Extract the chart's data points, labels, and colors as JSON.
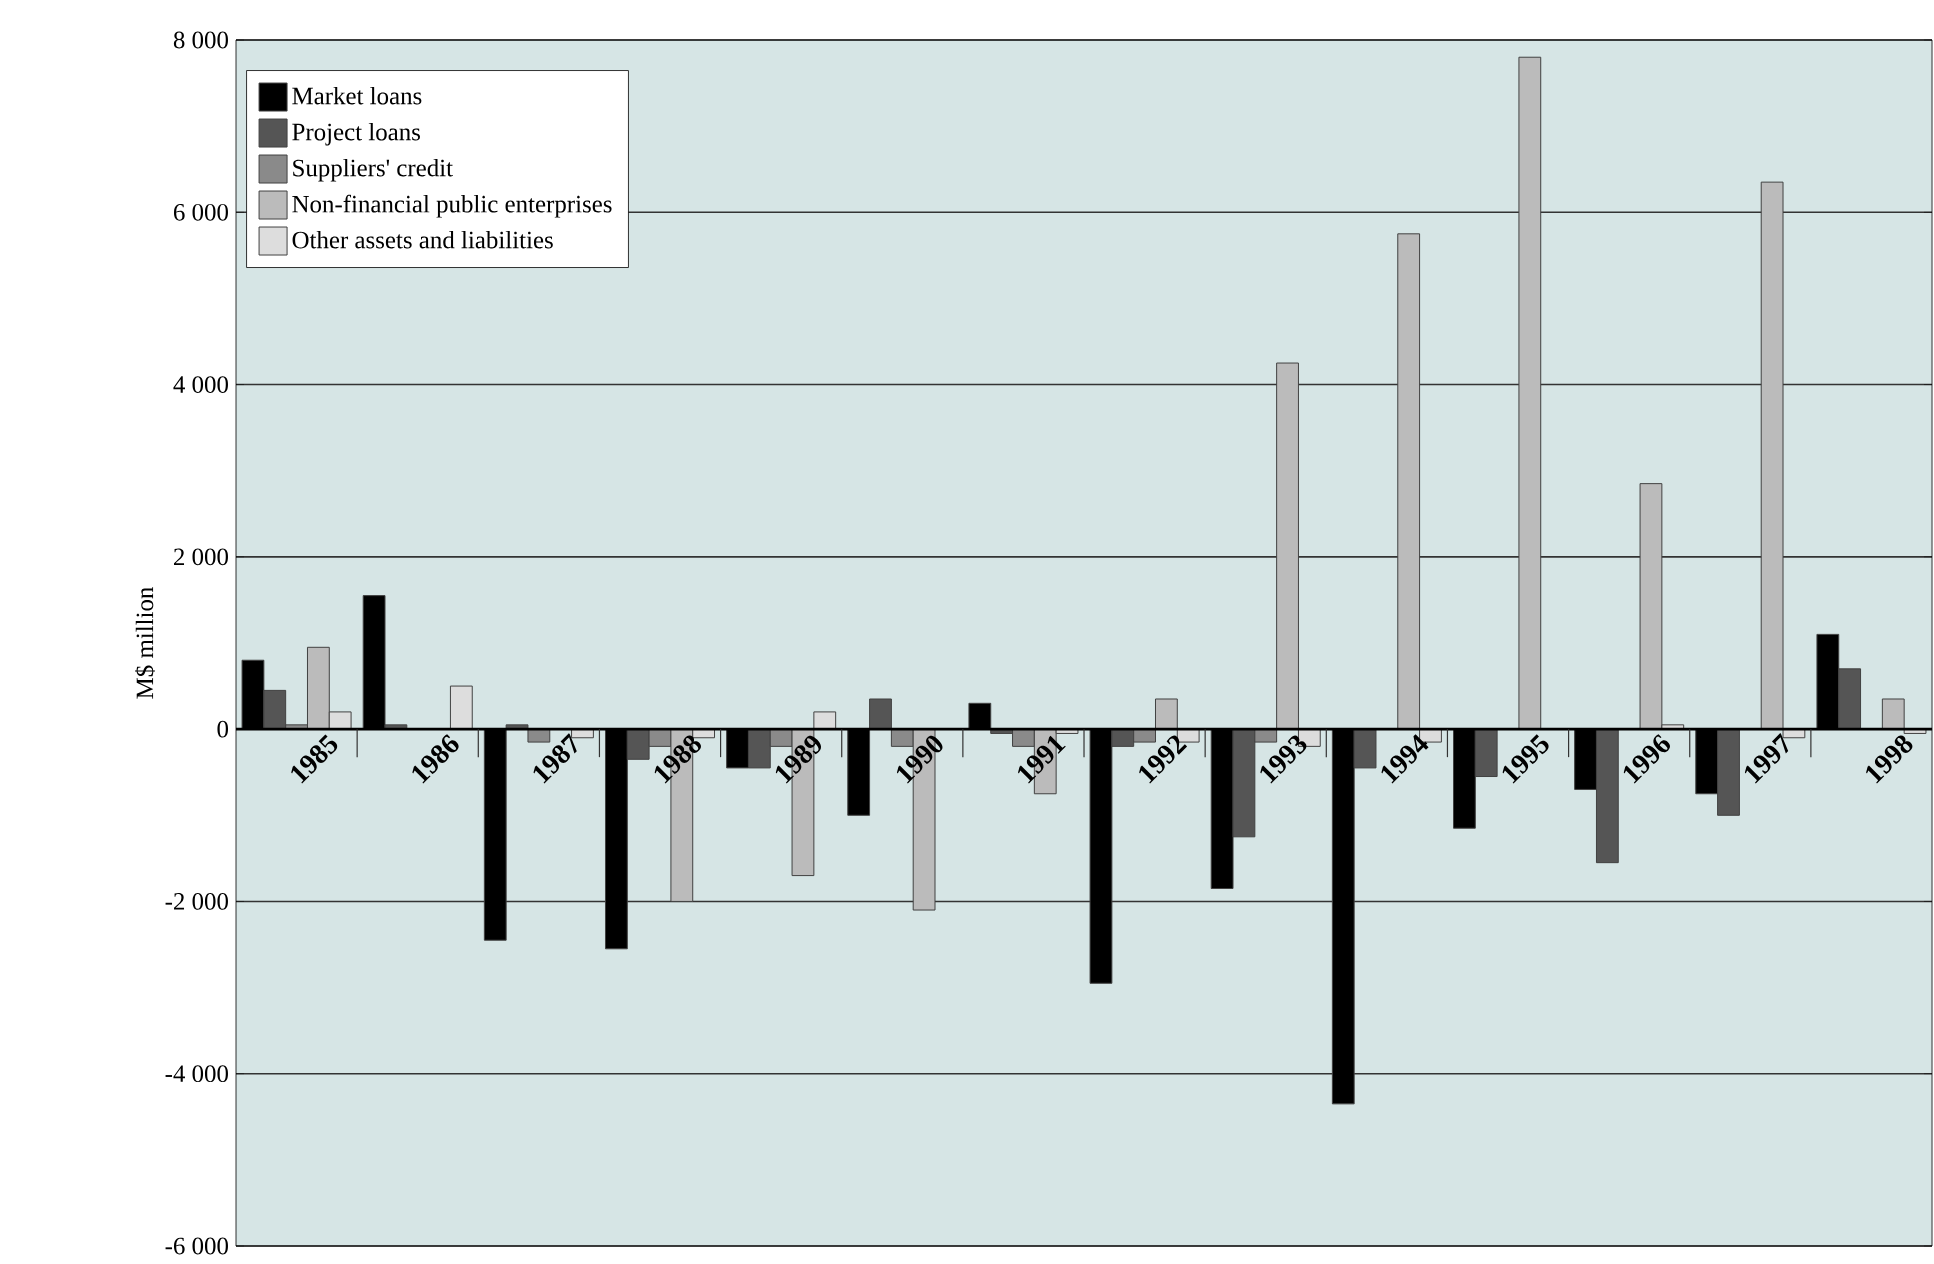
{
  "chart_data": {
    "type": "bar",
    "ylabel": "M$ million",
    "categories": [
      "1985",
      "1986",
      "1987",
      "1988",
      "1989",
      "1990",
      "1991",
      "1992",
      "1993",
      "1994",
      "1995",
      "1996",
      "1997",
      "1998"
    ],
    "series": [
      {
        "name": "Market loans",
        "color": "#000000",
        "values": [
          800,
          1550,
          -2450,
          -2550,
          -450,
          -1000,
          300,
          -2950,
          -1850,
          -4350,
          -1150,
          -700,
          -750,
          1100
        ]
      },
      {
        "name": "Project loans",
        "color": "#555555",
        "values": [
          450,
          50,
          50,
          -350,
          -450,
          350,
          -50,
          -200,
          -1250,
          -450,
          -550,
          -1550,
          -1000,
          700
        ]
      },
      {
        "name": "Suppliers' credit",
        "color": "#8a8a8a",
        "values": [
          50,
          0,
          -150,
          -200,
          -200,
          -200,
          -200,
          -150,
          -150,
          0,
          0,
          0,
          0,
          0
        ]
      },
      {
        "name": "Non-financial public enterprises",
        "color": "#bbbbbb",
        "values": [
          950,
          0,
          0,
          -2000,
          -1700,
          -2100,
          -750,
          350,
          4250,
          5750,
          7800,
          2850,
          6350,
          350
        ]
      },
      {
        "name": "Other assets and liabilities",
        "color": "#dddddd",
        "values": [
          200,
          500,
          -100,
          -100,
          200,
          0,
          -50,
          -150,
          -200,
          -150,
          0,
          50,
          -100,
          -50
        ]
      }
    ],
    "ylim": [
      -6000,
      8000
    ],
    "yticks": [
      {
        "value": -6000,
        "label": "-6 000"
      },
      {
        "value": -4000,
        "label": "-4 000"
      },
      {
        "value": -2000,
        "label": "-2 000"
      },
      0,
      {
        "value": 2000,
        "label": "2 000"
      },
      {
        "value": 4000,
        "label": "4 000"
      },
      {
        "value": 6000,
        "label": "6 000"
      },
      {
        "value": 8000,
        "label": "8 000"
      }
    ],
    "grid": "y",
    "legend": "top left"
  }
}
